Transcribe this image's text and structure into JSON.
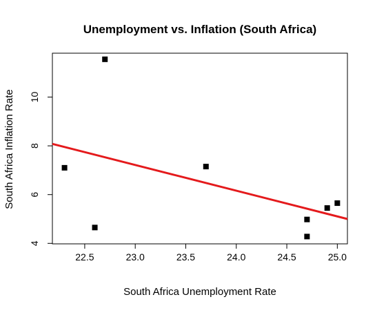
{
  "chart_data": {
    "type": "scatter",
    "title": "Unemployment vs. Inflation (South Africa)",
    "xlabel": "South Africa Unemployment Rate",
    "ylabel": "South Africa Inflation Rate",
    "xlim": [
      22.18,
      25.1
    ],
    "ylim": [
      3.98,
      11.8
    ],
    "x_ticks": [
      22.5,
      23.0,
      23.5,
      24.0,
      24.5,
      25.0
    ],
    "x_tick_labels": [
      "22.5",
      "23.0",
      "23.5",
      "24.0",
      "24.5",
      "25.0"
    ],
    "y_ticks": [
      4,
      6,
      8,
      10
    ],
    "y_tick_labels": [
      "4",
      "6",
      "8",
      "10"
    ],
    "grid": false,
    "legend": "none",
    "points": [
      {
        "x": 22.3,
        "y": 7.1
      },
      {
        "x": 22.6,
        "y": 4.65
      },
      {
        "x": 22.7,
        "y": 11.55
      },
      {
        "x": 23.7,
        "y": 7.15
      },
      {
        "x": 24.7,
        "y": 4.98
      },
      {
        "x": 24.7,
        "y": 4.28
      },
      {
        "x": 24.9,
        "y": 5.45
      },
      {
        "x": 25.0,
        "y": 5.65
      }
    ],
    "trend_line": {
      "x": [
        22.18,
        25.1
      ],
      "y": [
        8.08,
        5.0
      ],
      "color": "#e41a1c"
    },
    "marker_color": "#000000"
  }
}
